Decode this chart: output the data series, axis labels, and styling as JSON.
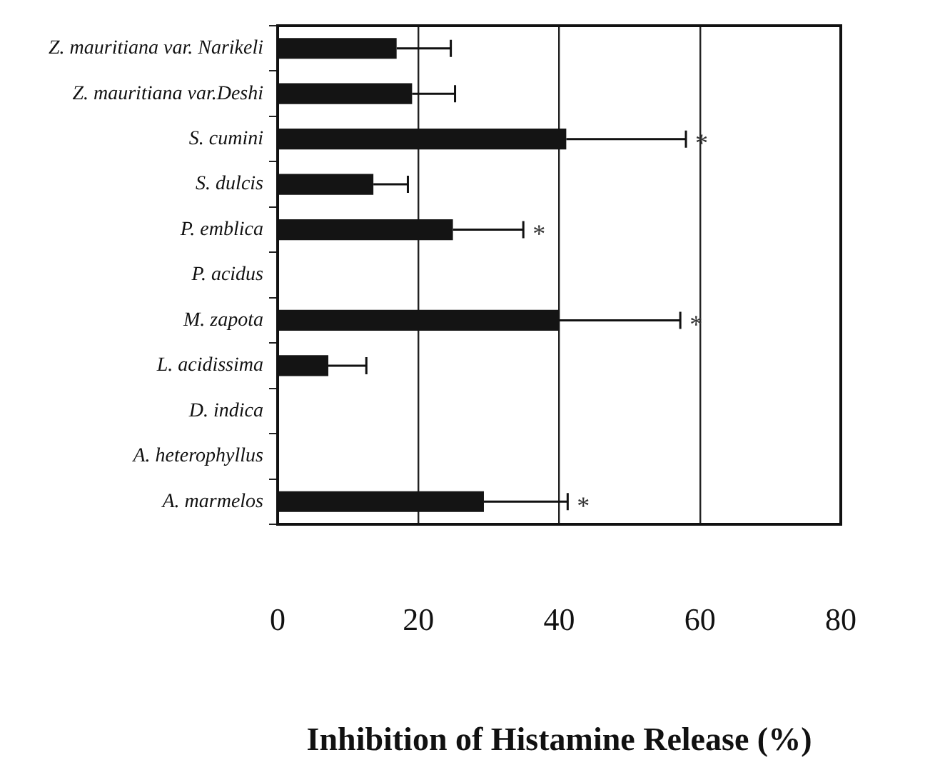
{
  "chart_data": {
    "type": "bar",
    "orientation": "horizontal",
    "xlabel": "Inhibition of Histamine Release (%)",
    "categories": [
      "Z. mauritiana var. Narikeli",
      "Z. mauritiana var.Deshi",
      "S. cumini",
      "S. dulcis",
      "P. emblica",
      "P. acidus",
      "M. zapota",
      "L. acidissima",
      "D. indica",
      "A. heterophyllus",
      "A. marmelos"
    ],
    "values": [
      16.9,
      19.1,
      41.0,
      13.6,
      24.9,
      null,
      40.0,
      7.2,
      null,
      null,
      29.3
    ],
    "errors": [
      7.7,
      6.1,
      17.0,
      4.9,
      10.0,
      null,
      17.2,
      5.4,
      null,
      null,
      11.9
    ],
    "color": "#141414",
    "xlim": [
      0,
      80
    ],
    "xticks": [
      0,
      20,
      40,
      60,
      80
    ],
    "grid": "x",
    "annotations": [
      {
        "text": "*",
        "x": 58.0,
        "y": "S. cumini"
      },
      {
        "text": "*",
        "x": 34.9,
        "y": "P. emblica"
      },
      {
        "text": "*",
        "x": 57.2,
        "y": "M. zapota"
      },
      {
        "text": "*",
        "x": 41.2,
        "y": "A. marmelos"
      }
    ]
  }
}
